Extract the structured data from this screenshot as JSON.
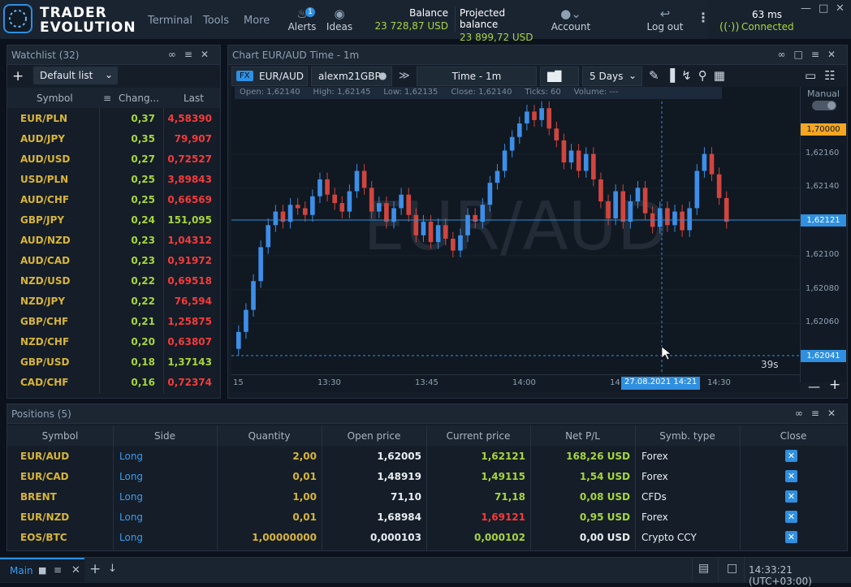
{
  "app": {
    "logo_line1": "TRADER",
    "logo_line2": "EVOLUTION"
  },
  "topmenu": [
    "Terminal",
    "Tools",
    "More"
  ],
  "topicons": {
    "alerts": "Alerts",
    "alerts_badge": "1",
    "ideas": "Ideas",
    "account": "Account",
    "logout": "Log out"
  },
  "balance": {
    "label": "Balance",
    "value": "23 728,87 USD",
    "proj_label": "Projected balance",
    "proj_value": "23 899,72 USD"
  },
  "connection": {
    "ping": "63 ms",
    "status": "Connected"
  },
  "watchlist": {
    "title": "Watchlist (32)",
    "list_name": "Default list",
    "columns": [
      "Symbol",
      "Chang...",
      "Last"
    ],
    "rows": [
      {
        "symbol": "EUR/PLN",
        "change": "0,37",
        "last": "4,58390",
        "dir": "down"
      },
      {
        "symbol": "AUD/JPY",
        "change": "0,35",
        "last": "79,907",
        "dir": "down"
      },
      {
        "symbol": "AUD/USD",
        "change": "0,27",
        "last": "0,72527",
        "dir": "down"
      },
      {
        "symbol": "USD/PLN",
        "change": "0,25",
        "last": "3,89843",
        "dir": "down"
      },
      {
        "symbol": "AUD/CHF",
        "change": "0,25",
        "last": "0,66569",
        "dir": "down"
      },
      {
        "symbol": "GBP/JPY",
        "change": "0,24",
        "last": "151,095",
        "dir": "up"
      },
      {
        "symbol": "AUD/NZD",
        "change": "0,23",
        "last": "1,04312",
        "dir": "down"
      },
      {
        "symbol": "AUD/CAD",
        "change": "0,23",
        "last": "0,91972",
        "dir": "down"
      },
      {
        "symbol": "NZD/USD",
        "change": "0,22",
        "last": "0,69518",
        "dir": "down"
      },
      {
        "symbol": "NZD/JPY",
        "change": "0,22",
        "last": "76,594",
        "dir": "down"
      },
      {
        "symbol": "GBP/CHF",
        "change": "0,21",
        "last": "1,25875",
        "dir": "down"
      },
      {
        "symbol": "NZD/CHF",
        "change": "0,20",
        "last": "0,63807",
        "dir": "down"
      },
      {
        "symbol": "GBP/USD",
        "change": "0,18",
        "last": "1,37143",
        "dir": "up"
      },
      {
        "symbol": "CAD/CHF",
        "change": "0,16",
        "last": "0,72374",
        "dir": "down"
      }
    ]
  },
  "chart": {
    "title": "Chart EUR/AUD Time - 1m",
    "fx_badge": "FX",
    "symbol": "EUR/AUD",
    "account": "alexm21GBP",
    "timeframe": "Time - 1m",
    "period": "5 Days",
    "ohlc": {
      "open_label": "Open:",
      "open": "1,62140",
      "high_label": "High:",
      "high": "1,62145",
      "low_label": "Low:",
      "low": "1,62135",
      "close_label": "Close:",
      "close": "1,62140",
      "ticks_label": "Ticks:",
      "ticks": "60",
      "volume_label": "Volume:",
      "volume": "---"
    },
    "watermark": "EUR/AUD",
    "manual_label": "Manual",
    "price_ticks": [
      "1,62160",
      "1,62140",
      "1,62100",
      "1,62080",
      "1,62060"
    ],
    "badge_top": "1,70000",
    "badge_current": "1,62121",
    "badge_cursor": "1,62041",
    "time_ticks": [
      "15",
      "13:30",
      "13:45",
      "14:00",
      "14:",
      "14:30"
    ],
    "cursor_time": "27.08.2021 14:21",
    "countdown": "39s"
  },
  "chart_data": {
    "type": "candlestick",
    "title": "",
    "y_range": [
      1.6203,
      1.6219
    ],
    "y_ticks": [
      1.6216,
      1.6214,
      1.621,
      1.6208,
      1.6206
    ],
    "x_ticks": [
      "13:30",
      "13:45",
      "14:00",
      "14:30"
    ],
    "current_price": 1.62121,
    "cursor_price": 1.62041,
    "candles": [
      {
        "o": 1.62045,
        "c": 1.62055
      },
      {
        "o": 1.62055,
        "c": 1.62068
      },
      {
        "o": 1.62068,
        "c": 1.62085
      },
      {
        "o": 1.62085,
        "c": 1.62105
      },
      {
        "o": 1.62105,
        "c": 1.62118
      },
      {
        "o": 1.62118,
        "c": 1.62126
      },
      {
        "o": 1.62126,
        "c": 1.6212
      },
      {
        "o": 1.6212,
        "c": 1.6213
      },
      {
        "o": 1.6213,
        "c": 1.62128
      },
      {
        "o": 1.62128,
        "c": 1.62124
      },
      {
        "o": 1.62124,
        "c": 1.62135
      },
      {
        "o": 1.62135,
        "c": 1.62145
      },
      {
        "o": 1.62145,
        "c": 1.62136
      },
      {
        "o": 1.62136,
        "c": 1.62131
      },
      {
        "o": 1.62131,
        "c": 1.62126
      },
      {
        "o": 1.62126,
        "c": 1.62138
      },
      {
        "o": 1.62138,
        "c": 1.6215
      },
      {
        "o": 1.6215,
        "c": 1.6214
      },
      {
        "o": 1.6214,
        "c": 1.62126
      },
      {
        "o": 1.62126,
        "c": 1.62131
      },
      {
        "o": 1.62131,
        "c": 1.6212
      },
      {
        "o": 1.6212,
        "c": 1.62128
      },
      {
        "o": 1.62128,
        "c": 1.62136
      },
      {
        "o": 1.62136,
        "c": 1.62124
      },
      {
        "o": 1.62124,
        "c": 1.62112
      },
      {
        "o": 1.62112,
        "c": 1.6212
      },
      {
        "o": 1.6212,
        "c": 1.62108
      },
      {
        "o": 1.62108,
        "c": 1.62118
      },
      {
        "o": 1.62118,
        "c": 1.6211
      },
      {
        "o": 1.6211,
        "c": 1.62103
      },
      {
        "o": 1.62103,
        "c": 1.62112
      },
      {
        "o": 1.62112,
        "c": 1.62124
      },
      {
        "o": 1.62124,
        "c": 1.6212
      },
      {
        "o": 1.6212,
        "c": 1.6213
      },
      {
        "o": 1.6213,
        "c": 1.62143
      },
      {
        "o": 1.62143,
        "c": 1.6215
      },
      {
        "o": 1.6215,
        "c": 1.62162
      },
      {
        "o": 1.62162,
        "c": 1.6217
      },
      {
        "o": 1.6217,
        "c": 1.62178
      },
      {
        "o": 1.62178,
        "c": 1.62185
      },
      {
        "o": 1.62185,
        "c": 1.6218
      },
      {
        "o": 1.6218,
        "c": 1.62187
      },
      {
        "o": 1.62187,
        "c": 1.62175
      },
      {
        "o": 1.62175,
        "c": 1.62168
      },
      {
        "o": 1.62168,
        "c": 1.62155
      },
      {
        "o": 1.62155,
        "c": 1.62162
      },
      {
        "o": 1.62162,
        "c": 1.6215
      },
      {
        "o": 1.6215,
        "c": 1.6216
      },
      {
        "o": 1.6216,
        "c": 1.62145
      },
      {
        "o": 1.62145,
        "c": 1.62132
      },
      {
        "o": 1.62132,
        "c": 1.62122
      },
      {
        "o": 1.62122,
        "c": 1.62138
      },
      {
        "o": 1.62138,
        "c": 1.6212
      },
      {
        "o": 1.6212,
        "c": 1.62132
      },
      {
        "o": 1.62132,
        "c": 1.6214
      },
      {
        "o": 1.6214,
        "c": 1.62125
      },
      {
        "o": 1.62125,
        "c": 1.62117
      },
      {
        "o": 1.62117,
        "c": 1.62128
      },
      {
        "o": 1.62128,
        "c": 1.62118
      },
      {
        "o": 1.62118,
        "c": 1.62126
      },
      {
        "o": 1.62126,
        "c": 1.62115
      },
      {
        "o": 1.62115,
        "c": 1.62128
      },
      {
        "o": 1.62128,
        "c": 1.6215
      },
      {
        "o": 1.6215,
        "c": 1.6216
      },
      {
        "o": 1.6216,
        "c": 1.62148
      },
      {
        "o": 1.62148,
        "c": 1.62134
      },
      {
        "o": 1.62134,
        "c": 1.6212
      }
    ]
  },
  "positions": {
    "title": "Positions (5)",
    "columns": [
      "Symbol",
      "Side",
      "Quantity",
      "Open price",
      "Current price",
      "Net P/L",
      "Symb. type",
      "Close"
    ],
    "rows": [
      {
        "symbol": "EUR/AUD",
        "side": "Long",
        "qty": "2,00",
        "open": "1,62005",
        "current": "1,62121",
        "cur_dir": "up",
        "pl": "168,26 USD",
        "pl_dir": "up",
        "type": "Forex"
      },
      {
        "symbol": "EUR/CAD",
        "side": "Long",
        "qty": "0,01",
        "open": "1,48919",
        "current": "1,49115",
        "cur_dir": "up",
        "pl": "1,54 USD",
        "pl_dir": "up",
        "type": "Forex"
      },
      {
        "symbol": "BRENT",
        "side": "Long",
        "qty": "1,00",
        "open": "71,10",
        "current": "71,18",
        "cur_dir": "up",
        "pl": "0,08 USD",
        "pl_dir": "up",
        "type": "CFDs"
      },
      {
        "symbol": "EUR/NZD",
        "side": "Long",
        "qty": "0,01",
        "open": "1,68984",
        "current": "1,69121",
        "cur_dir": "down",
        "pl": "0,95 USD",
        "pl_dir": "up",
        "type": "Forex"
      },
      {
        "symbol": "EOS/BTC",
        "side": "Long",
        "qty": "1,00000000",
        "open": "0,000103",
        "current": "0,000102",
        "cur_dir": "up",
        "pl": "0,00 USD",
        "pl_dir": "flat",
        "type": "Crypto CCY"
      }
    ]
  },
  "bottom": {
    "tab": "Main",
    "clock": "14:33:21 (UTC+03:00)"
  },
  "colors": {
    "accent": "#2f8fe0",
    "up": "#a7d53d",
    "down": "#f53b3b",
    "gold": "#d8b43a",
    "bull": "#3d8ee8",
    "bear": "#d0453f"
  }
}
